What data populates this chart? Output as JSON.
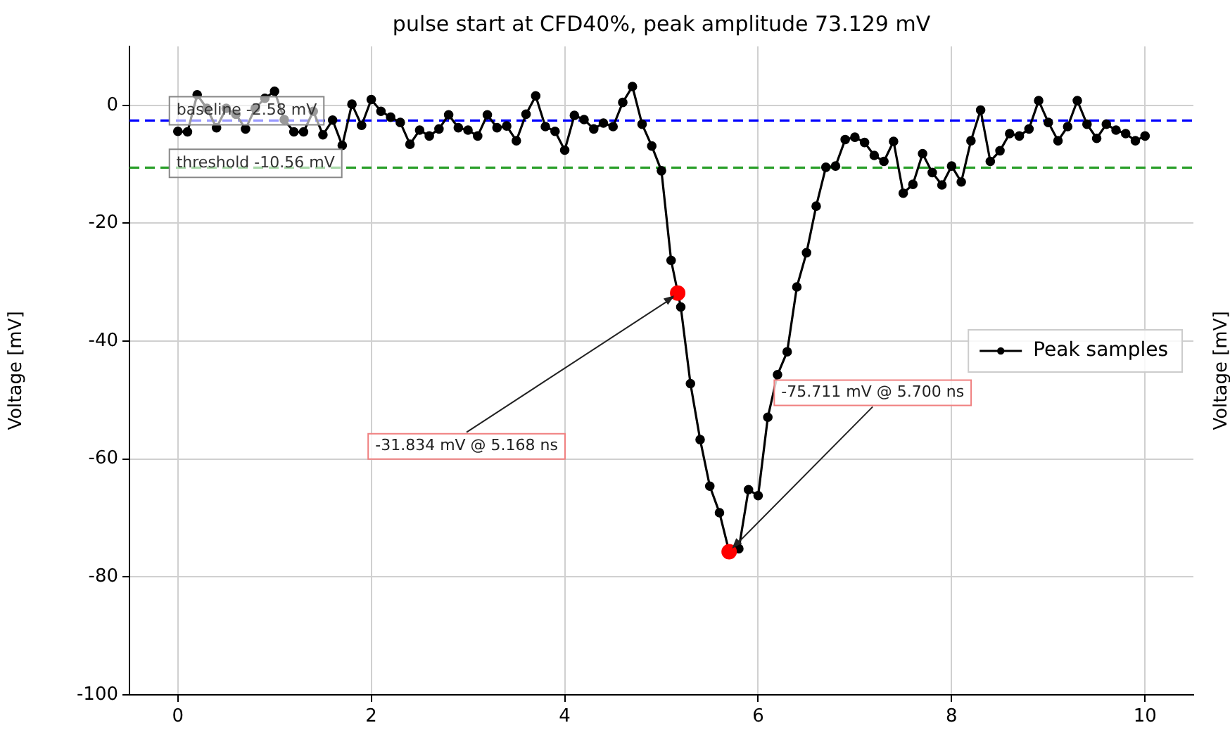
{
  "chart_data": {
    "type": "line",
    "title": "pulse start at CFD40%, peak amplitude 73.129 mV",
    "ylabel": "Voltage [mV]",
    "y2label": "Voltage [mV]",
    "xlim": [
      -0.5,
      10.5
    ],
    "xticks": [
      0,
      2,
      4,
      6,
      8,
      10
    ],
    "ylim": [
      -100,
      10
    ],
    "yticks": [
      -100,
      -80,
      -60,
      -40,
      -20,
      0
    ],
    "grid": true,
    "legend": "right",
    "marker": "circle",
    "line_style": "solid",
    "series": [
      {
        "name": "Peak samples",
        "color": "#000000",
        "x": [
          0,
          0.1,
          0.2,
          0.3,
          0.4,
          0.5,
          0.6,
          0.7,
          0.8,
          0.9,
          1,
          1.1,
          1.2,
          1.3,
          1.4,
          1.5,
          1.6,
          1.7,
          1.8,
          1.9,
          2,
          2.1,
          2.2,
          2.3,
          2.4,
          2.5,
          2.6,
          2.7,
          2.8,
          2.9,
          3,
          3.1,
          3.2,
          3.3,
          3.4,
          3.5,
          3.6,
          3.7,
          3.8,
          3.9,
          4,
          4.1,
          4.2,
          4.3,
          4.4,
          4.5,
          4.6,
          4.7,
          4.8,
          4.9,
          5,
          5.1,
          5.2,
          5.3,
          5.4,
          5.5,
          5.6,
          5.7,
          5.8,
          5.9,
          6,
          6.1,
          6.2,
          6.3,
          6.4,
          6.5,
          6.6,
          6.7,
          6.8,
          6.9,
          7,
          7.1,
          7.2,
          7.3,
          7.4,
          7.5,
          7.6,
          7.7,
          7.8,
          7.9,
          8,
          8.1,
          8.2,
          8.3,
          8.4,
          8.5,
          8.6,
          8.7,
          8.8,
          8.9,
          9,
          9.1,
          9.2,
          9.3,
          9.4,
          9.5,
          9.6,
          9.7,
          9.8,
          9.9,
          10
        ],
        "values": [
          -4.4,
          -4.5,
          1.8,
          -0.5,
          -3.8,
          -0.5,
          -1.5,
          -4.0,
          -0.5,
          1.2,
          2.4,
          -2.4,
          -4.5,
          -4.5,
          -1.0,
          -5.0,
          -2.5,
          -6.8,
          0.2,
          -3.4,
          1.0,
          -1.0,
          -2.0,
          -2.9,
          -6.6,
          -4.2,
          -5.2,
          -4.0,
          -1.6,
          -3.8,
          -4.2,
          -5.2,
          -1.6,
          -3.8,
          -3.5,
          -6.0,
          -1.5,
          1.6,
          -3.6,
          -4.4,
          -7.6,
          -1.7,
          -2.4,
          -4.0,
          -3.0,
          -3.6,
          0.5,
          3.2,
          -3.2,
          -6.9,
          -11.1,
          -26.3,
          -34.2,
          -47.2,
          -56.7,
          -64.6,
          -69.1,
          -75.7,
          -75.2,
          -65.2,
          -66.2,
          -52.9,
          -45.7,
          -41.8,
          -30.8,
          -25,
          -17.1,
          -10.5,
          -10.3,
          -5.8,
          -5.4,
          -6.3,
          -8.5,
          -9.5,
          -6.1,
          -14.9,
          -13.4,
          -8.2,
          -11.4,
          -13.5,
          -10.3,
          -13.0,
          -6.0,
          -0.8,
          -9.5,
          -7.7,
          -4.8,
          -5.2,
          -4.0,
          0.8,
          -2.9,
          -6.0,
          -3.6,
          0.8,
          -3.2,
          -5.6,
          -3.2,
          -4.2,
          -4.8,
          -6.0,
          -5.2
        ]
      },
      {
        "type": "scatter",
        "color": "#ff0000",
        "x": [
          5.168,
          5.7
        ],
        "values": [
          -31.834,
          -75.711
        ]
      }
    ],
    "ref_lines": [
      {
        "axis": "y",
        "value": -2.58,
        "label": "baseline -2.58 mV",
        "color": "#0000ff",
        "line_style": "dashed"
      },
      {
        "axis": "y",
        "value": -10.56,
        "label": "threshold -10.56 mV",
        "color": "#2ca02c",
        "line_style": "dashed"
      }
    ],
    "annotations": [
      {
        "text": "-31.834 mV @ 5.168 ns",
        "x": 5.168,
        "y": -31.834
      },
      {
        "text": "-75.711 mV @ 5.700 ns",
        "x": 5.7,
        "y": -75.711
      }
    ]
  }
}
